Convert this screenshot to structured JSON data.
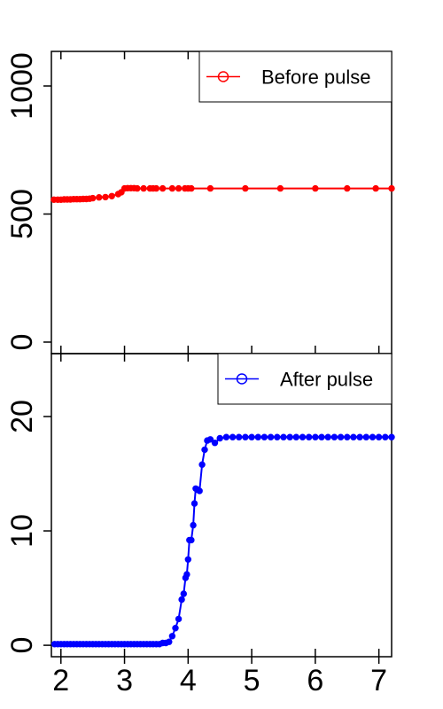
{
  "chart_data": [
    {
      "type": "line",
      "panel": "top",
      "series": [
        {
          "name": "Before pulse",
          "color": "#ff0000",
          "marker": "open-circle",
          "x": [
            1.89,
            1.95,
            2.0,
            2.05,
            2.1,
            2.15,
            2.2,
            2.25,
            2.3,
            2.35,
            2.4,
            2.45,
            2.5,
            2.6,
            2.7,
            2.8,
            2.9,
            2.95,
            3.0,
            3.05,
            3.1,
            3.15,
            3.2,
            3.3,
            3.4,
            3.45,
            3.5,
            3.6,
            3.75,
            3.85,
            3.95,
            4.0,
            4.05,
            4.35,
            4.9,
            5.45,
            6.0,
            6.5,
            6.95,
            7.2
          ],
          "values": [
            556,
            556,
            556,
            557,
            557,
            557,
            558,
            558,
            558,
            559,
            559,
            560,
            562,
            565,
            566,
            570,
            578,
            585,
            600,
            601,
            601,
            601,
            600,
            600,
            600,
            600,
            600,
            600,
            600,
            600,
            600,
            600,
            600,
            600,
            600,
            600,
            600,
            600,
            600,
            600
          ]
        }
      ],
      "xlim": [
        1.85,
        7.2
      ],
      "ylim": [
        -45,
        1135
      ],
      "yticks": [
        0,
        500,
        1000
      ],
      "ytick_labels": [
        "0",
        "500",
        "1000"
      ],
      "xticks": [
        2,
        3,
        4,
        5,
        6,
        7
      ],
      "legend_position": "top-right",
      "grid": false
    },
    {
      "type": "line",
      "panel": "bottom",
      "series": [
        {
          "name": "After pulse",
          "color": "#0000ff",
          "marker": "open-circle",
          "x": [
            1.9,
            1.95,
            2.0,
            2.05,
            2.1,
            2.15,
            2.2,
            2.25,
            2.3,
            2.35,
            2.4,
            2.45,
            2.5,
            2.55,
            2.6,
            2.65,
            2.7,
            2.75,
            2.8,
            2.85,
            2.9,
            2.95,
            3.0,
            3.05,
            3.1,
            3.15,
            3.2,
            3.25,
            3.3,
            3.35,
            3.4,
            3.45,
            3.5,
            3.55,
            3.6,
            3.65,
            3.7,
            3.75,
            3.8,
            3.85,
            3.9,
            3.93,
            3.96,
            3.98,
            4.0,
            4.02,
            4.05,
            4.08,
            4.1,
            4.12,
            4.15,
            4.18,
            4.22,
            4.26,
            4.3,
            4.35,
            4.42,
            4.5,
            4.6,
            4.7,
            4.8,
            4.9,
            5.0,
            5.1,
            5.2,
            5.3,
            5.4,
            5.5,
            5.6,
            5.7,
            5.8,
            5.9,
            6.0,
            6.1,
            6.2,
            6.3,
            6.4,
            6.5,
            6.6,
            6.7,
            6.8,
            6.9,
            7.0,
            7.1,
            7.2
          ],
          "values": [
            0.1,
            0.1,
            0.1,
            0.1,
            0.1,
            0.1,
            0.1,
            0.1,
            0.1,
            0.1,
            0.1,
            0.1,
            0.1,
            0.1,
            0.1,
            0.1,
            0.1,
            0.1,
            0.1,
            0.1,
            0.1,
            0.1,
            0.1,
            0.1,
            0.1,
            0.1,
            0.1,
            0.1,
            0.1,
            0.1,
            0.1,
            0.1,
            0.1,
            0.1,
            0.2,
            0.2,
            0.3,
            0.8,
            1.5,
            2.3,
            4.0,
            4.5,
            5.9,
            6.2,
            7.5,
            9.2,
            9.2,
            10.5,
            12.4,
            13.7,
            13.6,
            13.5,
            15.8,
            17.1,
            17.9,
            18.0,
            17.7,
            18.1,
            18.2,
            18.2,
            18.2,
            18.2,
            18.2,
            18.2,
            18.2,
            18.2,
            18.2,
            18.2,
            18.2,
            18.2,
            18.2,
            18.2,
            18.2,
            18.2,
            18.2,
            18.2,
            18.2,
            18.2,
            18.2,
            18.2,
            18.2,
            18.2,
            18.2,
            18.2,
            18.2
          ]
        }
      ],
      "xlim": [
        1.85,
        7.2
      ],
      "ylim": [
        -1,
        25.5
      ],
      "yticks": [
        0,
        10,
        20
      ],
      "ytick_labels": [
        "0",
        "10",
        "20"
      ],
      "xticks": [
        2,
        3,
        4,
        5,
        6,
        7
      ],
      "xtick_labels": [
        "2",
        "3",
        "4",
        "5",
        "6",
        "7"
      ],
      "legend_position": "top-right",
      "grid": false
    }
  ]
}
